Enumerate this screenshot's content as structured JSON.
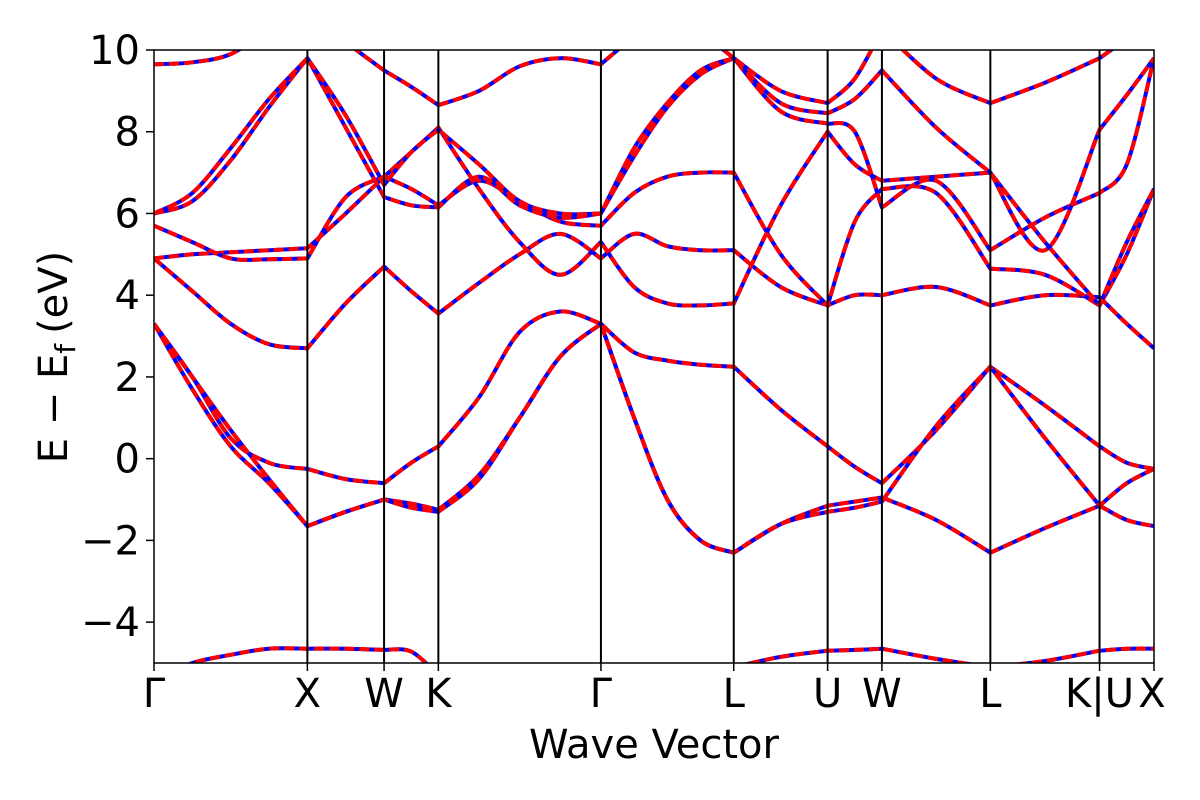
{
  "chart_data": {
    "type": "line",
    "xlabel": "Wave Vector",
    "ylabel": "E − E",
    "ylabel_subscript": "f",
    "ylabel_unit": "(eV)",
    "ylim": [
      -5,
      10
    ],
    "yticks": [
      {
        "value": -4,
        "label": "−4"
      },
      {
        "value": -2,
        "label": "−2"
      },
      {
        "value": 0,
        "label": "0"
      },
      {
        "value": 2,
        "label": "2"
      },
      {
        "value": 4,
        "label": "4"
      },
      {
        "value": 6,
        "label": "6"
      },
      {
        "value": 8,
        "label": "8"
      },
      {
        "value": 10,
        "label": "10"
      }
    ],
    "xlim": [
      0,
      6.52
    ],
    "kpoints": [
      {
        "label": "Γ",
        "x": 0.0
      },
      {
        "label": "X",
        "x": 1.0
      },
      {
        "label": "W",
        "x": 1.5
      },
      {
        "label": "K",
        "x": 1.854
      },
      {
        "label": "Γ",
        "x": 2.914
      },
      {
        "label": "L",
        "x": 3.78
      },
      {
        "label": "U",
        "x": 4.392
      },
      {
        "label": "W",
        "x": 4.746
      },
      {
        "label": "L",
        "x": 5.453
      },
      {
        "label": "K|U",
        "x": 6.165
      },
      {
        "label": "X",
        "x": 6.52
      }
    ],
    "series_styles": [
      {
        "color": "#0000ff",
        "style": "solid"
      },
      {
        "color": "#ff0000",
        "style": "dashed"
      }
    ],
    "bands": [
      {
        "segments": [
          [
            -5.4,
            -5.0,
            -4.8,
            -4.65,
            -4.65
          ],
          [
            -4.65,
            -4.65,
            -4.68
          ],
          [
            -4.68,
            -4.72,
            -5.3
          ],
          [
            -5.3,
            -5.6,
            -5.8
          ],
          [
            -5.8,
            -5.5,
            -5.1
          ],
          [
            -5.1,
            -4.85,
            -4.7
          ],
          [
            -4.7,
            -4.68,
            -4.65
          ],
          [
            -4.65,
            -4.9,
            -5.1
          ],
          [
            -5.1,
            -4.95,
            -4.7
          ],
          [
            -4.7,
            -4.65,
            -4.65
          ]
        ]
      },
      {
        "segments": [
          [
            3.3,
            1.7,
            0.3,
            -0.6,
            -1.65
          ],
          [
            -1.65,
            -1.3,
            -1.0
          ],
          [
            -1.0,
            -1.1,
            -1.25
          ],
          [
            -1.25,
            -0.4,
            1.0,
            2.5,
            3.3
          ],
          [
            3.3,
            1.0,
            -1.0,
            -2.0,
            -2.3
          ],
          [
            -2.3,
            -1.6,
            -1.15
          ],
          [
            -1.15,
            -1.05,
            -0.95
          ],
          [
            -0.95,
            -1.5,
            -2.3
          ],
          [
            -2.3,
            -1.7,
            -1.15
          ],
          [
            -1.15,
            -1.5,
            -1.65
          ]
        ]
      },
      {
        "segments": [
          [
            3.3,
            2.0,
            0.5,
            -0.1,
            -0.25
          ],
          [
            -0.25,
            -0.5,
            -0.6
          ],
          [
            -0.6,
            -0.1,
            0.3
          ],
          [
            0.3,
            1.5,
            3.1,
            3.6,
            3.3
          ],
          [
            3.3,
            2.6,
            2.4,
            2.3,
            2.25
          ],
          [
            2.25,
            1.2,
            0.3
          ],
          [
            0.3,
            -0.2,
            -0.6
          ],
          [
            -0.6,
            0.7,
            2.25
          ],
          [
            2.25,
            1.3,
            0.3
          ],
          [
            0.3,
            -0.1,
            -0.25
          ]
        ]
      },
      {
        "segments": [
          [
            3.3,
            2.0,
            0.7,
            -0.5,
            -1.65
          ],
          [
            -1.65,
            -1.3,
            -1.0
          ],
          [
            -1.0,
            -1.2,
            -1.3
          ],
          [
            -1.3,
            -0.5,
            1.0,
            2.5,
            3.3
          ],
          [
            3.3,
            1.0,
            -1.0,
            -2.0,
            -2.3
          ],
          [
            -2.3,
            -1.6,
            -1.3
          ],
          [
            -1.3,
            -1.2,
            -1.05
          ],
          [
            -1.05,
            0.8,
            2.25
          ],
          [
            2.25,
            0.5,
            -1.15
          ],
          [
            -1.15,
            -0.6,
            -0.25
          ]
        ]
      },
      {
        "segments": [
          [
            4.9,
            4.1,
            3.3,
            2.8,
            2.7
          ],
          [
            2.7,
            3.8,
            4.7
          ],
          [
            4.7,
            4.1,
            3.55
          ],
          [
            3.55,
            4.3,
            5.0,
            5.5,
            4.9
          ],
          [
            4.9,
            5.5,
            5.2,
            5.1,
            5.1
          ],
          [
            5.1,
            4.2,
            3.75
          ],
          [
            3.75,
            4.0,
            4.0
          ],
          [
            4.0,
            4.2,
            3.75
          ],
          [
            3.75,
            4.0,
            3.95
          ],
          [
            3.95,
            3.3,
            2.7
          ]
        ]
      },
      {
        "segments": [
          [
            4.9,
            5.0,
            5.05,
            5.1,
            5.15
          ],
          [
            5.15,
            6.0,
            6.9
          ],
          [
            6.9,
            6.6,
            6.2
          ],
          [
            6.2,
            6.8,
            6.3,
            5.8,
            5.7
          ],
          [
            5.7,
            6.5,
            6.9,
            7.0,
            7.0
          ],
          [
            7.0,
            5.0,
            3.75
          ],
          [
            3.75,
            5.8,
            6.6
          ],
          [
            6.6,
            6.5,
            4.65
          ],
          [
            4.65,
            4.5,
            3.75
          ],
          [
            3.75,
            5.0,
            6.6
          ]
        ]
      },
      {
        "segments": [
          [
            5.7,
            5.3,
            4.9,
            4.88,
            4.9
          ],
          [
            4.9,
            6.4,
            6.9
          ],
          [
            6.9,
            7.5,
            8.1
          ],
          [
            8.1,
            6.6,
            5.3,
            4.5,
            5.3
          ],
          [
            5.3,
            4.2,
            3.8,
            3.75,
            3.8
          ],
          [
            3.8,
            6.2,
            8.0
          ],
          [
            8.0,
            7.2,
            6.8
          ],
          [
            6.8,
            6.9,
            7.0
          ],
          [
            7.0,
            5.3,
            3.75
          ],
          [
            3.75,
            5.3,
            6.6
          ]
        ]
      },
      {
        "segments": [
          [
            6.0,
            6.3,
            7.3,
            8.6,
            9.8
          ],
          [
            9.8,
            8.1,
            6.4
          ],
          [
            6.4,
            6.2,
            6.15
          ],
          [
            6.15,
            6.9,
            6.2,
            5.9,
            6.0
          ],
          [
            6.0,
            7.4,
            8.6,
            9.4,
            9.8
          ],
          [
            9.8,
            8.5,
            8.2
          ],
          [
            8.2,
            8.0,
            6.15
          ],
          [
            6.15,
            6.8,
            5.1
          ],
          [
            5.1,
            5.9,
            6.5
          ],
          [
            6.5,
            7.2,
            9.8
          ]
        ]
      },
      {
        "segments": [
          [
            6.0,
            6.5,
            7.6,
            8.8,
            9.8
          ],
          [
            9.8,
            8.4,
            6.7
          ],
          [
            6.7,
            7.5,
            8.05
          ],
          [
            8.05,
            7.2,
            6.3,
            6.0,
            6.0
          ],
          [
            6.0,
            7.6,
            8.7,
            9.5,
            9.8
          ],
          [
            9.8,
            8.7,
            8.45
          ],
          [
            8.45,
            8.8,
            9.5
          ],
          [
            9.5,
            8.1,
            7.0
          ],
          [
            7.0,
            5.1,
            8.05
          ],
          [
            8.05,
            8.9,
            9.8
          ]
        ]
      },
      {
        "segments": [
          [
            9.65,
            9.7,
            9.9,
            10.5,
            11.0
          ],
          [
            11.0,
            10.2,
            9.5
          ],
          [
            9.5,
            9.1,
            8.65
          ],
          [
            8.65,
            9.0,
            9.6,
            9.8,
            9.65
          ],
          [
            9.65,
            10.3,
            10.6,
            10.4,
            9.8
          ],
          [
            9.8,
            9.0,
            8.7
          ],
          [
            8.7,
            9.3,
            10.5
          ],
          [
            10.5,
            9.3,
            8.7
          ],
          [
            8.7,
            9.2,
            9.8
          ],
          [
            9.8,
            10.3,
            11.0
          ]
        ]
      }
    ]
  }
}
